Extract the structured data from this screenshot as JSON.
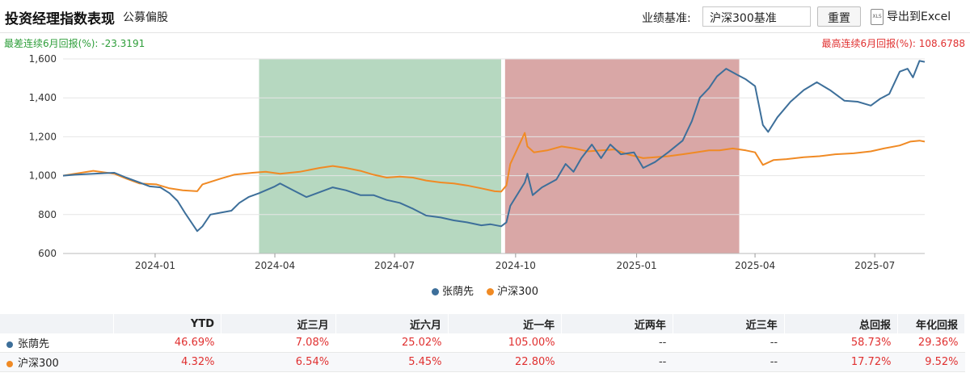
{
  "header": {
    "title": "投资经理指数表现",
    "subtitle": "公募偏股",
    "benchmark_label": "业绩基准:",
    "benchmark_value": "沪深300基准",
    "reset_label": "重置",
    "export_label": "导出到Excel",
    "xls_icon_text": "XLS"
  },
  "stats": {
    "worst_6m": "最差连续6月回报(%): -23.3191",
    "best_6m": "最高连续6月回报(%): 108.6788"
  },
  "colors": {
    "manager": "#3d6f9a",
    "benchmark": "#f08a24",
    "worst_band": "#b6d8c0",
    "best_band": "#d9a7a6"
  },
  "chart_data": {
    "type": "line",
    "x_start": "2023-10-23",
    "x_end": "2025-08-08",
    "ylim": [
      600,
      1600
    ],
    "y_ticks": [
      "600",
      "800",
      "1,000",
      "1,200",
      "1,400",
      "1,600"
    ],
    "x_ticks": [
      {
        "date": "2024-01-01",
        "label": "2024-01"
      },
      {
        "date": "2024-04-01",
        "label": "2024-04"
      },
      {
        "date": "2024-07-01",
        "label": "2024-07"
      },
      {
        "date": "2024-10-01",
        "label": "2024-10"
      },
      {
        "date": "2025-01-01",
        "label": "2025-01"
      },
      {
        "date": "2025-04-01",
        "label": "2025-04"
      },
      {
        "date": "2025-07-01",
        "label": "2025-07"
      }
    ],
    "bands": [
      {
        "name": "worst-6m-period",
        "from": "2024-03-20",
        "to": "2024-09-20"
      },
      {
        "name": "best-6m-period",
        "from": "2024-09-23",
        "to": "2025-03-20"
      }
    ],
    "series": [
      {
        "name": "张荫先",
        "points": [
          [
            "2023-10-23",
            1000
          ],
          [
            "2023-11-01",
            1005
          ],
          [
            "2023-11-15",
            1010
          ],
          [
            "2023-12-01",
            1015
          ],
          [
            "2023-12-10",
            990
          ],
          [
            "2023-12-20",
            965
          ],
          [
            "2023-12-28",
            945
          ],
          [
            "2024-01-05",
            940
          ],
          [
            "2024-01-12",
            910
          ],
          [
            "2024-01-18",
            870
          ],
          [
            "2024-01-24",
            805
          ],
          [
            "2024-02-02",
            715
          ],
          [
            "2024-02-06",
            740
          ],
          [
            "2024-02-12",
            800
          ],
          [
            "2024-02-20",
            810
          ],
          [
            "2024-02-28",
            820
          ],
          [
            "2024-03-05",
            860
          ],
          [
            "2024-03-12",
            890
          ],
          [
            "2024-03-20",
            910
          ],
          [
            "2024-04-01",
            945
          ],
          [
            "2024-04-05",
            960
          ],
          [
            "2024-04-15",
            925
          ],
          [
            "2024-04-25",
            890
          ],
          [
            "2024-05-05",
            915
          ],
          [
            "2024-05-15",
            940
          ],
          [
            "2024-05-25",
            925
          ],
          [
            "2024-06-05",
            900
          ],
          [
            "2024-06-15",
            900
          ],
          [
            "2024-06-25",
            875
          ],
          [
            "2024-07-05",
            860
          ],
          [
            "2024-07-15",
            830
          ],
          [
            "2024-07-25",
            795
          ],
          [
            "2024-08-05",
            785
          ],
          [
            "2024-08-15",
            770
          ],
          [
            "2024-08-25",
            760
          ],
          [
            "2024-09-05",
            745
          ],
          [
            "2024-09-12",
            750
          ],
          [
            "2024-09-20",
            740
          ],
          [
            "2024-09-24",
            760
          ],
          [
            "2024-09-27",
            845
          ],
          [
            "2024-10-08",
            965
          ],
          [
            "2024-10-10",
            1010
          ],
          [
            "2024-10-14",
            900
          ],
          [
            "2024-10-21",
            940
          ],
          [
            "2024-11-01",
            980
          ],
          [
            "2024-11-08",
            1060
          ],
          [
            "2024-11-14",
            1020
          ],
          [
            "2024-11-20",
            1090
          ],
          [
            "2024-11-28",
            1160
          ],
          [
            "2024-12-05",
            1090
          ],
          [
            "2024-12-12",
            1160
          ],
          [
            "2024-12-20",
            1110
          ],
          [
            "2024-12-30",
            1120
          ],
          [
            "2025-01-06",
            1040
          ],
          [
            "2025-01-15",
            1070
          ],
          [
            "2025-01-25",
            1120
          ],
          [
            "2025-02-05",
            1180
          ],
          [
            "2025-02-12",
            1280
          ],
          [
            "2025-02-18",
            1400
          ],
          [
            "2025-02-25",
            1450
          ],
          [
            "2025-03-03",
            1510
          ],
          [
            "2025-03-10",
            1550
          ],
          [
            "2025-03-18",
            1520
          ],
          [
            "2025-03-25",
            1495
          ],
          [
            "2025-04-01",
            1460
          ],
          [
            "2025-04-07",
            1260
          ],
          [
            "2025-04-11",
            1225
          ],
          [
            "2025-04-18",
            1300
          ],
          [
            "2025-04-28",
            1380
          ],
          [
            "2025-05-08",
            1440
          ],
          [
            "2025-05-18",
            1480
          ],
          [
            "2025-05-28",
            1440
          ],
          [
            "2025-06-08",
            1385
          ],
          [
            "2025-06-18",
            1380
          ],
          [
            "2025-06-28",
            1360
          ],
          [
            "2025-07-05",
            1395
          ],
          [
            "2025-07-12",
            1420
          ],
          [
            "2025-07-20",
            1535
          ],
          [
            "2025-07-26",
            1550
          ],
          [
            "2025-07-30",
            1505
          ],
          [
            "2025-08-04",
            1590
          ],
          [
            "2025-08-08",
            1585
          ]
        ]
      },
      {
        "name": "沪深300",
        "points": [
          [
            "2023-10-23",
            1000
          ],
          [
            "2023-11-01",
            1010
          ],
          [
            "2023-11-15",
            1025
          ],
          [
            "2023-12-01",
            1010
          ],
          [
            "2023-12-10",
            985
          ],
          [
            "2023-12-20",
            960
          ],
          [
            "2024-01-02",
            955
          ],
          [
            "2024-01-12",
            935
          ],
          [
            "2024-01-22",
            925
          ],
          [
            "2024-02-02",
            920
          ],
          [
            "2024-02-06",
            955
          ],
          [
            "2024-02-20",
            985
          ],
          [
            "2024-03-01",
            1005
          ],
          [
            "2024-03-15",
            1015
          ],
          [
            "2024-03-25",
            1020
          ],
          [
            "2024-04-05",
            1010
          ],
          [
            "2024-04-20",
            1020
          ],
          [
            "2024-05-05",
            1040
          ],
          [
            "2024-05-15",
            1050
          ],
          [
            "2024-05-25",
            1040
          ],
          [
            "2024-06-05",
            1025
          ],
          [
            "2024-06-15",
            1005
          ],
          [
            "2024-06-25",
            990
          ],
          [
            "2024-07-05",
            995
          ],
          [
            "2024-07-15",
            990
          ],
          [
            "2024-07-25",
            975
          ],
          [
            "2024-08-05",
            965
          ],
          [
            "2024-08-15",
            960
          ],
          [
            "2024-08-25",
            950
          ],
          [
            "2024-09-05",
            935
          ],
          [
            "2024-09-15",
            920
          ],
          [
            "2024-09-20",
            918
          ],
          [
            "2024-09-24",
            950
          ],
          [
            "2024-09-27",
            1060
          ],
          [
            "2024-10-08",
            1220
          ],
          [
            "2024-10-10",
            1150
          ],
          [
            "2024-10-15",
            1120
          ],
          [
            "2024-10-25",
            1130
          ],
          [
            "2024-11-05",
            1150
          ],
          [
            "2024-11-15",
            1140
          ],
          [
            "2024-11-25",
            1125
          ],
          [
            "2024-12-05",
            1130
          ],
          [
            "2024-12-15",
            1135
          ],
          [
            "2024-12-25",
            1110
          ],
          [
            "2025-01-06",
            1090
          ],
          [
            "2025-01-15",
            1095
          ],
          [
            "2025-01-25",
            1100
          ],
          [
            "2025-02-05",
            1110
          ],
          [
            "2025-02-15",
            1120
          ],
          [
            "2025-02-25",
            1130
          ],
          [
            "2025-03-05",
            1130
          ],
          [
            "2025-03-15",
            1140
          ],
          [
            "2025-03-25",
            1130
          ],
          [
            "2025-04-01",
            1120
          ],
          [
            "2025-04-07",
            1055
          ],
          [
            "2025-04-15",
            1080
          ],
          [
            "2025-04-25",
            1085
          ],
          [
            "2025-05-08",
            1095
          ],
          [
            "2025-05-20",
            1100
          ],
          [
            "2025-06-01",
            1110
          ],
          [
            "2025-06-15",
            1115
          ],
          [
            "2025-06-28",
            1125
          ],
          [
            "2025-07-08",
            1140
          ],
          [
            "2025-07-20",
            1155
          ],
          [
            "2025-07-28",
            1175
          ],
          [
            "2025-08-04",
            1180
          ],
          [
            "2025-08-08",
            1175
          ]
        ]
      }
    ],
    "legend": [
      "张荫先",
      "沪深300"
    ]
  },
  "table": {
    "headers": [
      "",
      "YTD",
      "近三月",
      "近六月",
      "近一年",
      "近两年",
      "近三年",
      "总回报",
      "年化回报"
    ],
    "rows": [
      {
        "name": "张荫先",
        "values": [
          "46.69%",
          "7.08%",
          "25.02%",
          "105.00%",
          "--",
          "--",
          "58.73%",
          "29.36%"
        ]
      },
      {
        "name": "沪深300",
        "values": [
          "4.32%",
          "6.54%",
          "5.45%",
          "22.80%",
          "--",
          "--",
          "17.72%",
          "9.52%"
        ]
      }
    ]
  }
}
